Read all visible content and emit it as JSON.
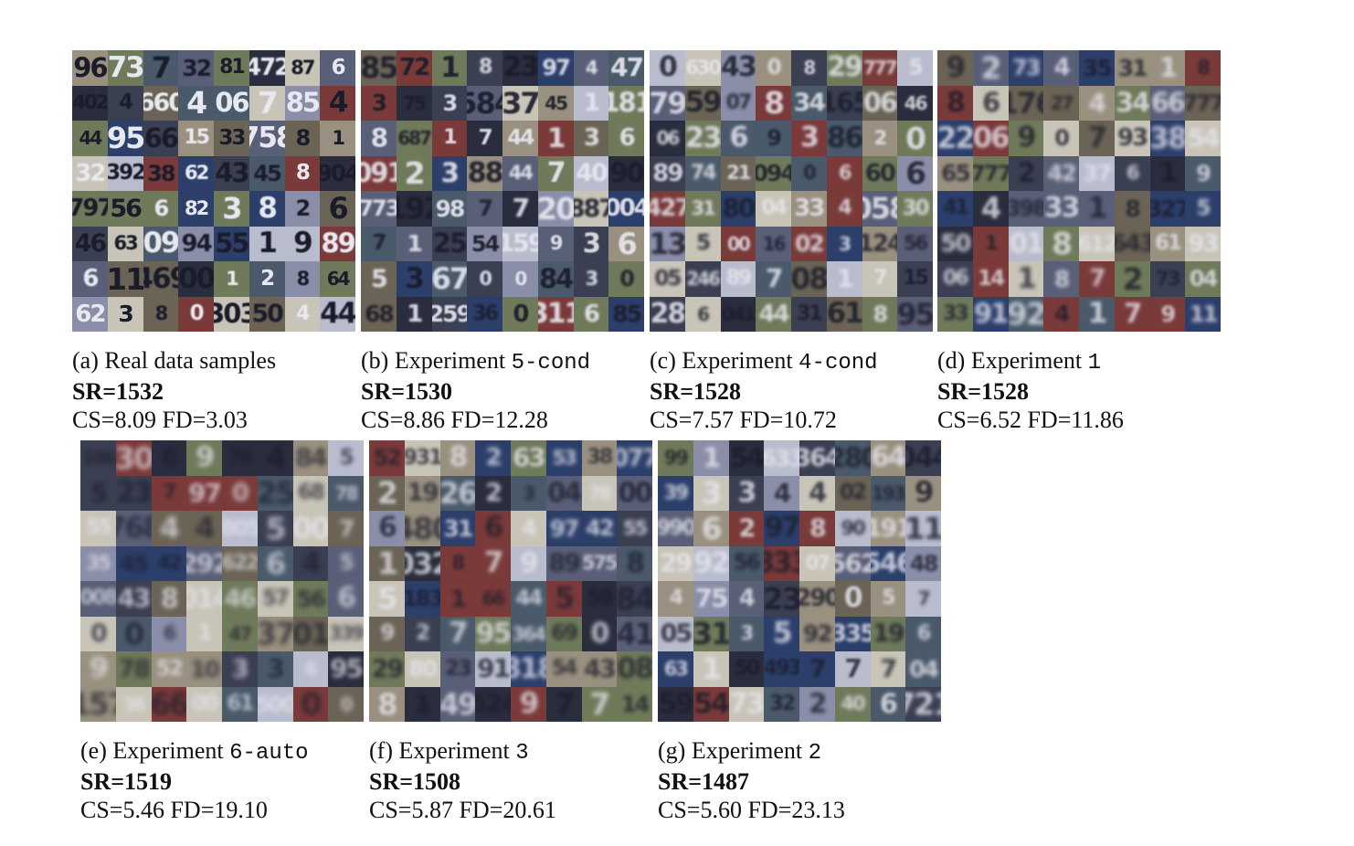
{
  "panels": [
    {
      "label": "(a) Real data samples",
      "code": "",
      "sr": "SR=1532",
      "metrics": "CS=8.09 FD=3.03",
      "sharpness": 1.0
    },
    {
      "label": "(b) Experiment ",
      "code": "5-cond",
      "sr": "SR=1530",
      "metrics": "CS=8.86 FD=12.28",
      "sharpness": 0.8
    },
    {
      "label": "(c) Experiment ",
      "code": "4-cond",
      "sr": "SR=1528",
      "metrics": "CS=7.57 FD=10.72",
      "sharpness": 0.65
    },
    {
      "label": "(d) Experiment ",
      "code": "1",
      "sr": "SR=1528",
      "metrics": "CS=6.52 FD=11.86",
      "sharpness": 0.5
    },
    {
      "label": "(e) Experiment ",
      "code": "6-auto",
      "sr": "SR=1519",
      "metrics": "CS=5.46 FD=19.10",
      "sharpness": 0.3
    },
    {
      "label": "(f) Experiment ",
      "code": "3",
      "sr": "SR=1508",
      "metrics": "CS=5.87 FD=20.61",
      "sharpness": 0.45
    },
    {
      "label": "(g) Experiment ",
      "code": "2",
      "sr": "SR=1487",
      "metrics": "CS=5.60 FD=23.13",
      "sharpness": 0.55
    }
  ]
}
